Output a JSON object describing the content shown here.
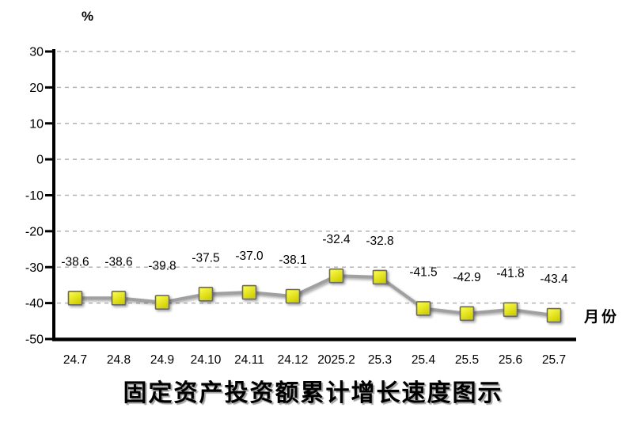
{
  "chart_data": {
    "type": "line",
    "title": "固定资产投资额累计增长速度图示",
    "unit_label": "%",
    "xlabel": "月份",
    "categories": [
      "24.7",
      "24.8",
      "24.9",
      "24.10",
      "24.11",
      "24.12",
      "2025.2",
      "25.3",
      "25.4",
      "25.5",
      "25.6",
      "25.7"
    ],
    "values": [
      -38.6,
      -38.6,
      -39.8,
      -37.5,
      -37.0,
      -38.1,
      -32.4,
      -32.8,
      -41.5,
      -42.9,
      -41.8,
      -43.4
    ],
    "series_name": "固定资产投资额累计增长速度",
    "y_ticks": [
      30,
      20,
      10,
      0,
      -10,
      -20,
      -30,
      -40,
      -50
    ],
    "ylim": [
      -50,
      30
    ],
    "grid": "horizontal-dashed",
    "legend": "none",
    "colors": {
      "marker_fill_light": "#ffff55",
      "marker_fill_dark": "#cfcf00",
      "marker_border": "#6a6a6a",
      "line": "#a0a0a0",
      "grid": "#b3b3b3",
      "axis": "#000000",
      "text": "#000000",
      "background": "#ffffff"
    }
  }
}
